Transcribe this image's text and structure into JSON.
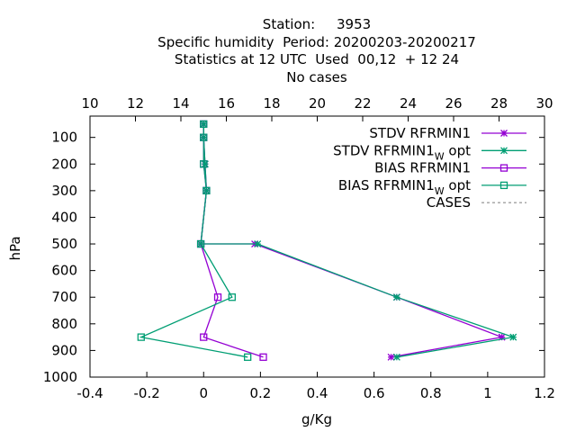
{
  "title": {
    "line1": "Station:     3953",
    "line2": "Specific humidity  Period: 20200203-20200217",
    "line3": "Statistics at 12 UTC  Used  00,12  + 12 24",
    "line4": "No cases"
  },
  "axes": {
    "xlabel": "g/Kg",
    "ylabel": "hPa",
    "x_ticks": [
      "-0.4",
      "-0.2",
      "0",
      "0.2",
      "0.4",
      "0.6",
      "0.8",
      "1",
      "1.2"
    ],
    "y_ticks": [
      "100",
      "200",
      "300",
      "400",
      "500",
      "600",
      "700",
      "800",
      "900",
      "1000"
    ],
    "x2_ticks": [
      "10",
      "12",
      "14",
      "16",
      "18",
      "20",
      "22",
      "24",
      "26",
      "28",
      "30"
    ]
  },
  "legend": [
    {
      "label": "STDV RFRMIN1",
      "sub": "",
      "suffix": "",
      "color": "#9400d3",
      "marker": "star"
    },
    {
      "label": "STDV RFRMIN1",
      "sub": "W",
      "suffix": " opt",
      "color": "#009e73",
      "marker": "star"
    },
    {
      "label": "BIAS RFRMIN1",
      "sub": "",
      "suffix": "",
      "color": "#9400d3",
      "marker": "square"
    },
    {
      "label": "BIAS RFRMIN1",
      "sub": "W",
      "suffix": " opt",
      "color": "#009e73",
      "marker": "square"
    },
    {
      "label": "CASES",
      "sub": "",
      "suffix": "",
      "color": "#a0a0a0",
      "marker": "dashed"
    }
  ],
  "chart_data": {
    "type": "line",
    "xlim": [
      -0.4,
      1.2
    ],
    "ylim": [
      1000,
      20
    ],
    "x2lim": [
      10,
      30
    ],
    "y_reversed": true,
    "grid": false,
    "legend_position": "top-right",
    "series": [
      {
        "name": "STDV RFRMIN1",
        "color": "#9400d3",
        "marker": "star",
        "x": [
          0.0,
          0.0,
          0.005,
          0.01,
          -0.01,
          0.18,
          0.68,
          1.05,
          0.66
        ],
        "y": [
          50,
          100,
          200,
          300,
          500,
          500,
          700,
          850,
          925
        ]
      },
      {
        "name": "STDV RFRMIN1 W opt",
        "color": "#009e73",
        "marker": "star",
        "x": [
          0.0,
          0.0,
          0.005,
          0.01,
          -0.01,
          0.19,
          0.68,
          1.09,
          0.68
        ],
        "y": [
          50,
          100,
          200,
          300,
          500,
          500,
          700,
          850,
          925
        ]
      },
      {
        "name": "BIAS RFRMIN1",
        "color": "#9400d3",
        "marker": "square",
        "x": [
          0.0,
          0.0,
          0.0,
          0.01,
          -0.01,
          0.05,
          0.0,
          0.21
        ],
        "y": [
          50,
          100,
          200,
          300,
          500,
          700,
          850,
          925
        ]
      },
      {
        "name": "BIAS RFRMIN1 W opt",
        "color": "#009e73",
        "marker": "square",
        "x": [
          0.0,
          0.0,
          0.0,
          0.01,
          -0.01,
          0.1,
          -0.22,
          0.155
        ],
        "y": [
          50,
          100,
          200,
          300,
          500,
          700,
          850,
          925
        ]
      },
      {
        "name": "CASES",
        "color": "#a0a0a0",
        "marker": "dashed",
        "x": [],
        "y": []
      }
    ]
  }
}
